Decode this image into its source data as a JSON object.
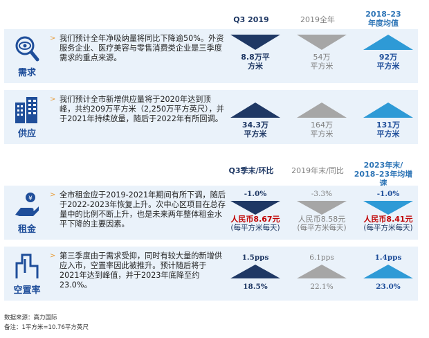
{
  "header1": {
    "c1": "Q3 2019",
    "c2": "2019全年",
    "c3a": "2018–23",
    "c3b": "年度均值"
  },
  "header2": {
    "c1": "Q3季末/环比",
    "c2": "2019年末/同比",
    "c3a": "2023年末/",
    "c3b": "2018–23年均增速"
  },
  "rows": [
    {
      "label": "需求",
      "icon": "magnifier-eye-icon",
      "text": "我们预计全年净吸纳量将同比下降逾50%。外资服务企业、医疗美容与零售消费类企业是三季度需求的重点来源。",
      "c1": [
        "8.8万平",
        "方米"
      ],
      "c2": [
        "54万",
        "平方米"
      ],
      "c3": [
        "92万",
        "平方米"
      ],
      "dir": [
        "down",
        "down",
        "up"
      ]
    },
    {
      "label": "供应",
      "icon": "buildings-icon",
      "text": "我们预计全市新增供应量将于2020年达到顶峰，共约209万平方米（2,250万平方英尺），并于2021年持续放量，随后于2022年有所回调。",
      "c1": [
        "34.3万",
        "平方米"
      ],
      "c2": [
        "164万",
        "平方米"
      ],
      "c3": [
        "131万",
        "平方米"
      ],
      "dir": [
        "up",
        "up",
        "up"
      ]
    },
    {
      "label": "租金",
      "icon": "hand-coin-icon",
      "text": "全市租金应于2019-2021年期间有所下调，随后于2022-2023年恢复上升。次中心区项目在总存量中的比例不断上升，也是未来两年整体租金水平下降的主要因素。",
      "c1": [
        "-1.0%",
        "人民币8.67元",
        "(每平方米每天)"
      ],
      "c2": [
        "-3.3%",
        "人民币8.58元",
        "(每平方米每天)"
      ],
      "c3": [
        "-1.0%",
        "人民币8.41元",
        "(每平方米每天)"
      ],
      "dir": [
        "down",
        "down",
        "down"
      ]
    },
    {
      "label": "空置率",
      "icon": "building-outline-icon",
      "text": "第三季度由于需求受抑，同时有较大量的新增供应入市，空置率因此被推升。预计随后将于2021年达到峰值，并于2023年底降至约23.0%。",
      "c1": [
        "1.5pps",
        "18.5%"
      ],
      "c2": [
        "6.1pps",
        "22.1%"
      ],
      "c3": [
        "1.4pps",
        "23.0%"
      ],
      "dir": [
        "up",
        "up",
        "up"
      ]
    }
  ],
  "colors": {
    "navy": "#1f3864",
    "gray": "#a6a6a6",
    "blue": "#2e75b6",
    "light": "#eaf2fa"
  },
  "footer": {
    "source": "数据来源：高力国际",
    "note": "备注：1平方米=10.76平方英尺"
  }
}
